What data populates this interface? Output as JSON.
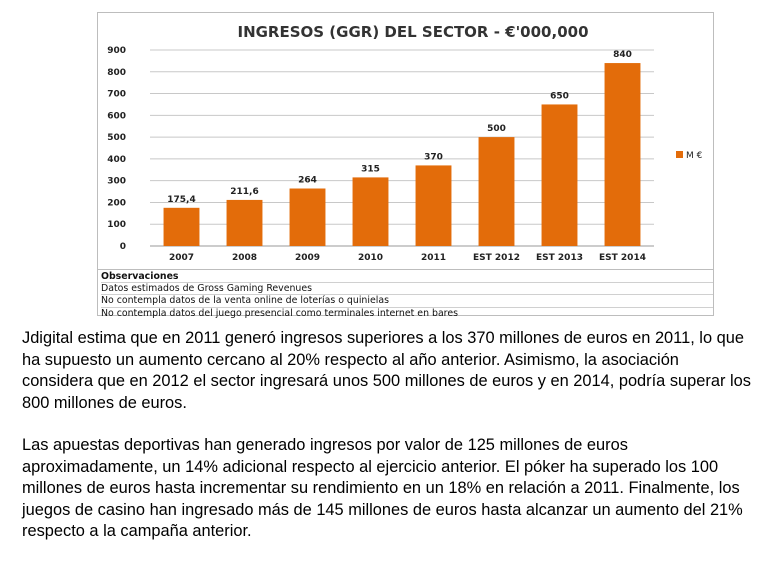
{
  "chart_data": {
    "type": "bar",
    "title": "INGRESOS (GGR) DEL SECTOR - €'000,000",
    "categories": [
      "2007",
      "2008",
      "2009",
      "2010",
      "2011",
      "EST 2012",
      "EST 2013",
      "EST 2014"
    ],
    "series": [
      {
        "name": "M €",
        "values": [
          175.4,
          211.6,
          264,
          315,
          370,
          500,
          650,
          840
        ],
        "labels": [
          "175,4",
          "211,6",
          "264",
          "315",
          "370",
          "500",
          "650",
          "840"
        ]
      }
    ],
    "yticks": [
      "0",
      "100",
      "200",
      "300",
      "400",
      "500",
      "600",
      "700",
      "800",
      "900"
    ],
    "ylim": [
      0,
      900
    ],
    "xlabel": "",
    "ylabel": "",
    "grid": true,
    "legend": "right",
    "bar_color": "#E36C0A"
  },
  "notes": {
    "title": "Observaciones",
    "lines": [
      "Datos estimados de Gross Gaming Revenues",
      "No contempla datos de la venta online de loterías o quinielas",
      "No contempla datos del juego presencial como terminales internet en bares"
    ]
  },
  "paragraphs": [
    "Jdigital estima que en 2011 generó ingresos superiores a los 370 millones de euros en 2011, lo que ha supuesto un aumento cercano al 20% respecto al año anterior. Asimismo, la asociación considera que en 2012 el sector ingresará unos 500 millones de euros y en 2014, podría superar los 800 millones de euros.",
    "Las apuestas deportivas han generado ingresos por valor de 125 millones de euros aproximadamente, un 14% adicional respecto al ejercicio anterior.  El póker ha superado los 100 millones de euros hasta incrementar su rendimiento en un 18% en relación a 2011. Finalmente, los juegos de casino han ingresado más de 145 millones de euros hasta alcanzar un aumento del 21% respecto a la campaña anterior."
  ]
}
